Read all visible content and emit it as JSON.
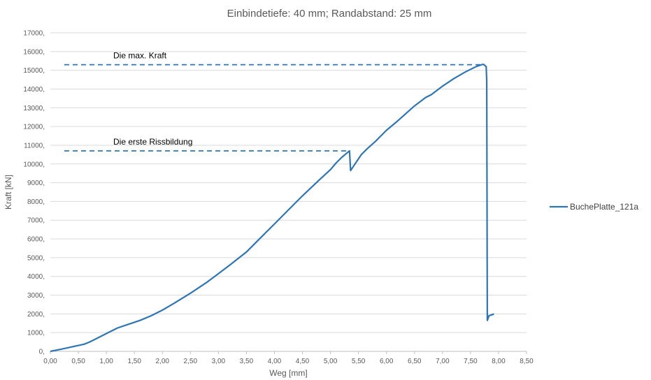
{
  "chart_data": {
    "type": "line",
    "title": "Einbindetiefe: 40 mm; Randabstand: 25 mm",
    "xlabel": "Weg [mm]",
    "ylabel": "Kraft [kN]",
    "xlim": [
      0,
      8.5
    ],
    "ylim": [
      0,
      17000
    ],
    "x_ticks": [
      0,
      0.5,
      1,
      1.5,
      2,
      2.5,
      3,
      3.5,
      4,
      4.5,
      5,
      5.5,
      6,
      6.5,
      7,
      7.5,
      8,
      8.5
    ],
    "x_tick_labels": [
      "0,00",
      "0,50",
      "1,00",
      "1,50",
      "2,00",
      "2,50",
      "3,00",
      "3,50",
      "4,00",
      "4,50",
      "5,00",
      "5,50",
      "6,00",
      "6,50",
      "7,00",
      "7,50",
      "8,00",
      "8,50"
    ],
    "y_ticks": [
      0,
      1000,
      2000,
      3000,
      4000,
      5000,
      6000,
      7000,
      8000,
      9000,
      10000,
      11000,
      12000,
      13000,
      14000,
      15000,
      16000,
      17000
    ],
    "y_tick_labels": [
      "0,",
      "1000,",
      "2000,",
      "3000,",
      "4000,",
      "5000,",
      "6000,",
      "7000,",
      "8000,",
      "9000,",
      "10000,",
      "11000,",
      "12000,",
      "13000,",
      "14000,",
      "15000,",
      "16000,",
      "17000,"
    ],
    "grid": true,
    "legend_position": "right",
    "series": [
      {
        "name": "BuchePlatte_121a",
        "color": "#2E75B6",
        "x": [
          0,
          0.2,
          0.4,
          0.6,
          0.7,
          0.8,
          1.0,
          1.2,
          1.4,
          1.6,
          1.8,
          2.0,
          2.2,
          2.5,
          2.8,
          3.0,
          3.2,
          3.5,
          3.7,
          4.0,
          4.2,
          4.5,
          4.8,
          5.0,
          5.1,
          5.2,
          5.3,
          5.34,
          5.36,
          5.45,
          5.55,
          5.65,
          5.8,
          6.0,
          6.2,
          6.5,
          6.7,
          6.8,
          7.0,
          7.2,
          7.4,
          7.6,
          7.7,
          7.73,
          7.76,
          7.78,
          7.79,
          7.8,
          7.83,
          7.88,
          7.92
        ],
        "y": [
          0,
          120,
          250,
          380,
          500,
          650,
          950,
          1250,
          1450,
          1650,
          1900,
          2200,
          2550,
          3100,
          3700,
          4150,
          4600,
          5300,
          5900,
          6800,
          7400,
          8300,
          9150,
          9700,
          10050,
          10350,
          10600,
          10700,
          9650,
          10050,
          10500,
          10800,
          11200,
          11800,
          12300,
          13100,
          13550,
          13700,
          14150,
          14550,
          14900,
          15200,
          15300,
          15320,
          15250,
          15200,
          14400,
          1650,
          1900,
          1950,
          2000
        ]
      }
    ],
    "annotations": [
      {
        "text": "Die max. Kraft",
        "y": 15300,
        "x_start": 0.25,
        "x_end": 7.75
      },
      {
        "text": "Die erste Rissbildung",
        "y": 10700,
        "x_start": 0.25,
        "x_end": 5.34
      }
    ]
  }
}
